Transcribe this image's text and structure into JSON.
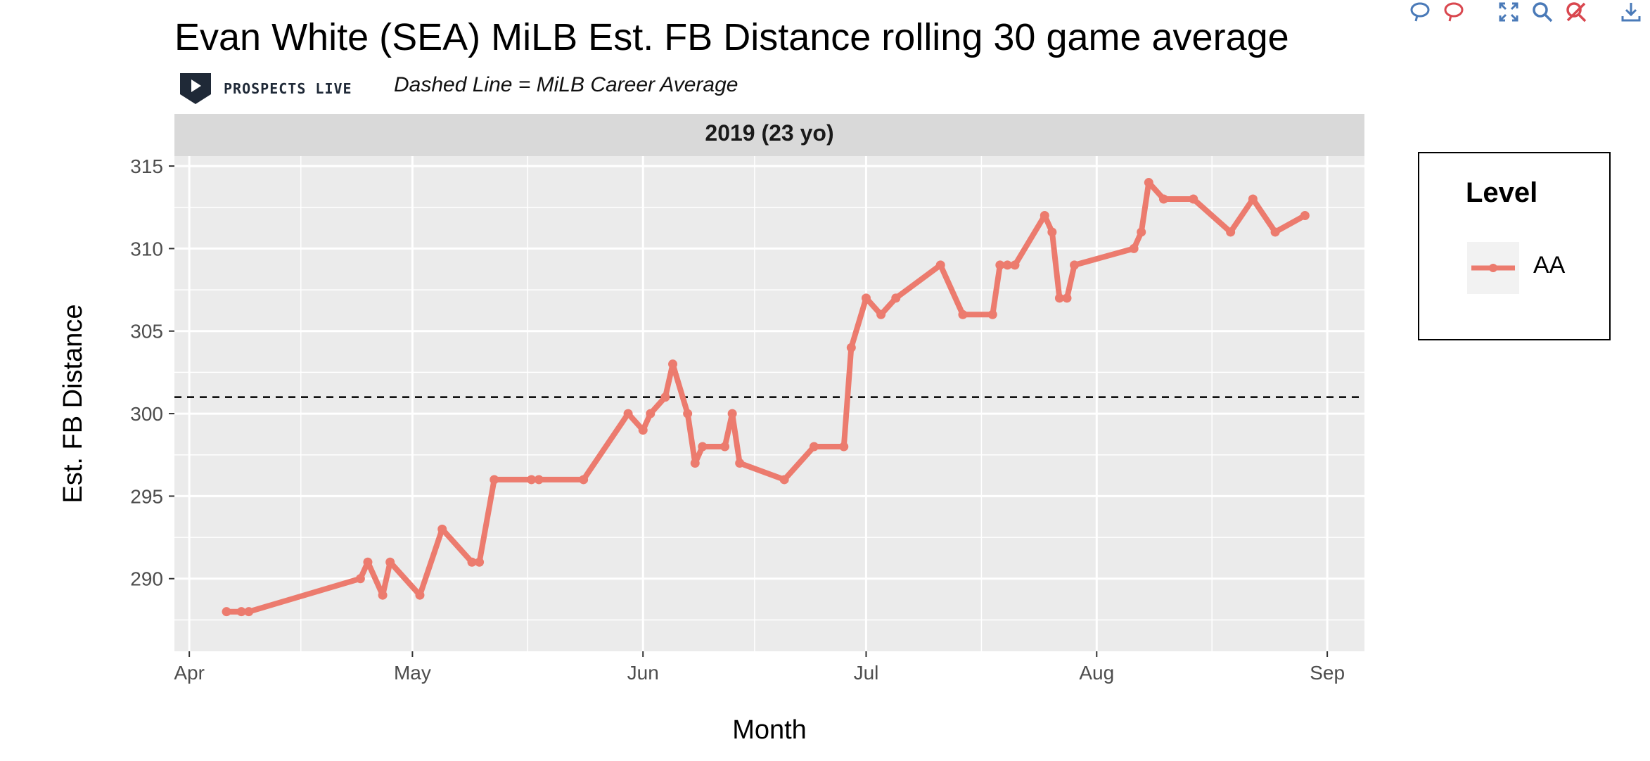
{
  "title": "Evan White (SEA) MiLB Est. FB Distance rolling 30 game average",
  "brand": "PROSPECTS LIVE",
  "subtitle": "Dashed Line = MiLB Career Average",
  "toolbar": {
    "icons": [
      "comment-icon",
      "comment-compare-icon",
      "autoscale-icon",
      "zoom-icon",
      "reset-icon",
      "download-icon"
    ]
  },
  "chart_data": {
    "type": "line",
    "panel_label": "2019 (23 yo)",
    "xlabel": "Month",
    "ylabel": "Est. FB Distance",
    "x_tick_labels": [
      "Apr",
      "May",
      "Jun",
      "Jul",
      "Aug",
      "Sep"
    ],
    "x_ticks": [
      "2019-04-01",
      "2019-05-01",
      "2019-06-01",
      "2019-07-01",
      "2019-08-01",
      "2019-09-01"
    ],
    "y_ticks": [
      290,
      295,
      300,
      305,
      310,
      315
    ],
    "xlim": [
      "2019-03-30",
      "2019-09-06"
    ],
    "ylim": [
      285.6,
      315.6
    ],
    "reference_line": {
      "y": 301,
      "style": "dashed"
    },
    "legend": {
      "title": "Level",
      "position": "right",
      "entries": [
        "AA"
      ]
    },
    "series": [
      {
        "name": "AA",
        "color": "#ec7b6e",
        "points": [
          [
            "2019-04-06",
            288
          ],
          [
            "2019-04-08",
            288
          ],
          [
            "2019-04-09",
            288
          ],
          [
            "2019-04-24",
            290
          ],
          [
            "2019-04-25",
            291
          ],
          [
            "2019-04-27",
            289
          ],
          [
            "2019-04-28",
            291
          ],
          [
            "2019-05-02",
            289
          ],
          [
            "2019-05-05",
            293
          ],
          [
            "2019-05-09",
            291
          ],
          [
            "2019-05-10",
            291
          ],
          [
            "2019-05-12",
            296
          ],
          [
            "2019-05-17",
            296
          ],
          [
            "2019-05-18",
            296
          ],
          [
            "2019-05-24",
            296
          ],
          [
            "2019-05-30",
            300
          ],
          [
            "2019-06-01",
            299
          ],
          [
            "2019-06-02",
            300
          ],
          [
            "2019-06-04",
            301
          ],
          [
            "2019-06-05",
            303
          ],
          [
            "2019-06-07",
            300
          ],
          [
            "2019-06-08",
            297
          ],
          [
            "2019-06-09",
            298
          ],
          [
            "2019-06-12",
            298
          ],
          [
            "2019-06-13",
            300
          ],
          [
            "2019-06-14",
            297
          ],
          [
            "2019-06-20",
            296
          ],
          [
            "2019-06-24",
            298
          ],
          [
            "2019-06-28",
            298
          ],
          [
            "2019-06-29",
            304
          ],
          [
            "2019-07-01",
            307
          ],
          [
            "2019-07-03",
            306
          ],
          [
            "2019-07-05",
            307
          ],
          [
            "2019-07-11",
            309
          ],
          [
            "2019-07-14",
            306
          ],
          [
            "2019-07-18",
            306
          ],
          [
            "2019-07-19",
            309
          ],
          [
            "2019-07-20",
            309
          ],
          [
            "2019-07-21",
            309
          ],
          [
            "2019-07-25",
            312
          ],
          [
            "2019-07-26",
            311
          ],
          [
            "2019-07-27",
            307
          ],
          [
            "2019-07-28",
            307
          ],
          [
            "2019-07-29",
            309
          ],
          [
            "2019-08-06",
            310
          ],
          [
            "2019-08-07",
            311
          ],
          [
            "2019-08-08",
            314
          ],
          [
            "2019-08-10",
            313
          ],
          [
            "2019-08-14",
            313
          ],
          [
            "2019-08-19",
            311
          ],
          [
            "2019-08-22",
            313
          ],
          [
            "2019-08-25",
            311
          ],
          [
            "2019-08-29",
            312
          ]
        ]
      }
    ]
  }
}
